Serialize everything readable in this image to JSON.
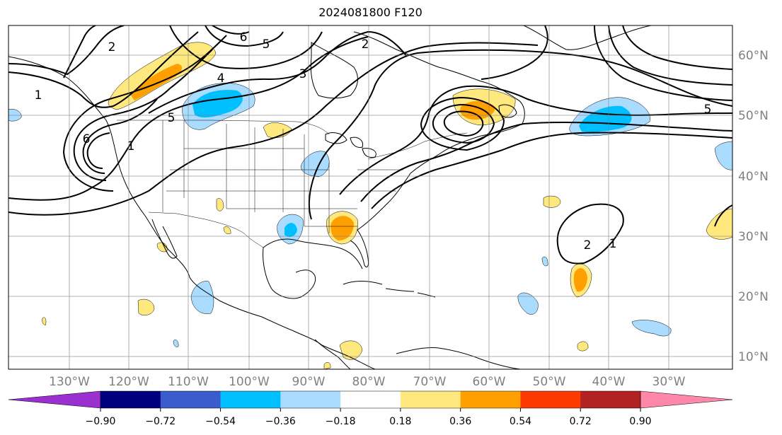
{
  "title": "2024081800 F120",
  "longitude_labels": [
    "130°W",
    "120°W",
    "110°W",
    "100°W",
    "90°W",
    "80°W",
    "70°W",
    "60°W",
    "50°W",
    "40°W",
    "30°W"
  ],
  "latitude_labels": [
    "60°N",
    "50°N",
    "40°N",
    "30°N",
    "20°N",
    "10°N"
  ],
  "colorbar": {
    "colors": [
      "#9b30d0",
      "#00007f",
      "#3b5ccd",
      "#00bfff",
      "#aadcff",
      "#ffffff",
      "#ffe97f",
      "#ffa000",
      "#ff3a00",
      "#b22222",
      "#ff88aa"
    ],
    "tick_labels": [
      "−0.90",
      "−0.72",
      "−0.54",
      "−0.36",
      "−0.18",
      "0.18",
      "0.36",
      "0.54",
      "0.72",
      "0.90"
    ]
  },
  "contour_labels": [
    "2",
    "1",
    "4",
    "6",
    "5",
    "3",
    "6",
    "5",
    "2",
    "2",
    "1",
    "1",
    "5"
  ]
}
